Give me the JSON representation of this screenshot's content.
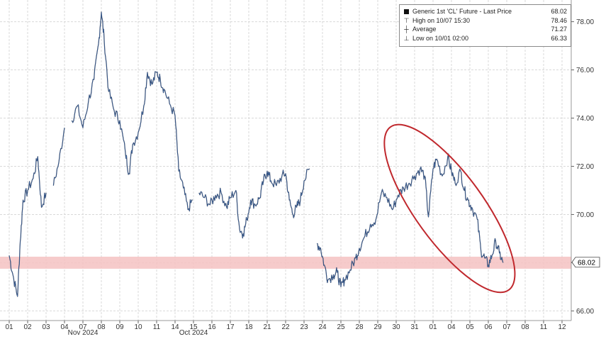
{
  "chart_data": {
    "type": "line",
    "legend": {
      "series_label": "Generic 1st 'CL' Future - Last Price",
      "last_value": "68.02",
      "rows": [
        {
          "label": "High on 10/07 15:30",
          "value": "78.46"
        },
        {
          "label": "Average",
          "value": "71.27"
        },
        {
          "label": "Low on 10/01 02:00",
          "value": "66.33"
        }
      ],
      "placement": "top-right"
    },
    "x_ticks": [
      "01",
      "02",
      "03",
      "04",
      "07",
      "08",
      "09",
      "10",
      "11",
      "14",
      "15",
      "16",
      "17",
      "18",
      "21",
      "22",
      "23",
      "24",
      "25",
      "28",
      "29",
      "30",
      "31",
      "01",
      "04",
      "05",
      "06",
      "07",
      "08",
      "11",
      "12"
    ],
    "x_month_labels": [
      {
        "label": "Oct 2024",
        "after_tick": "15"
      },
      {
        "label": "Nov 2024",
        "after_tick": "07"
      }
    ],
    "y_ticks": [
      "66.00",
      "68.00",
      "70.00",
      "72.00",
      "74.00",
      "76.00",
      "78.00"
    ],
    "ylim": [
      65.6,
      78.9
    ],
    "grid": true,
    "last_price_label": "68.02",
    "highlight_band": {
      "low": 67.75,
      "high": 68.25,
      "color": "#f4c2c2"
    },
    "annotation": {
      "type": "ellipse",
      "color": "#c0282d"
    },
    "series": [
      {
        "points": [
          [
            0,
            68.3
          ],
          [
            0.2,
            67.5
          ],
          [
            0.45,
            66.6
          ],
          [
            0.6,
            68.9
          ],
          [
            0.75,
            70.6
          ],
          [
            1.0,
            71.0
          ],
          [
            1.3,
            71.5
          ],
          [
            1.55,
            72.4
          ],
          [
            1.75,
            70.3
          ],
          [
            2.0,
            70.9
          ],
          [
            2.4,
            71.2
          ],
          [
            2.7,
            72.2
          ],
          [
            3.0,
            73.6
          ],
          [
            3.4,
            73.9
          ],
          [
            3.7,
            74.5
          ],
          [
            4.0,
            73.6
          ],
          [
            4.3,
            74.7
          ],
          [
            4.6,
            75.6
          ],
          [
            4.85,
            77.1
          ],
          [
            5.0,
            78.4
          ],
          [
            5.15,
            77.3
          ],
          [
            5.4,
            75.1
          ],
          [
            5.7,
            74.3
          ],
          [
            6.0,
            73.9
          ],
          [
            6.3,
            72.6
          ],
          [
            6.5,
            71.7
          ],
          [
            6.7,
            72.9
          ],
          [
            7.0,
            73.4
          ],
          [
            7.3,
            74.5
          ],
          [
            7.5,
            75.9
          ],
          [
            7.75,
            75.4
          ],
          [
            8.0,
            75.9
          ],
          [
            8.2,
            75.6
          ],
          [
            8.4,
            75.2
          ],
          [
            8.7,
            74.6
          ],
          [
            9.0,
            74.1
          ],
          [
            9.2,
            71.8
          ],
          [
            9.45,
            71.1
          ],
          [
            9.7,
            70.2
          ],
          [
            9.95,
            70.6
          ],
          [
            10.3,
            70.9
          ],
          [
            10.6,
            70.7
          ],
          [
            10.9,
            70.4
          ],
          [
            11.2,
            70.8
          ],
          [
            11.5,
            70.9
          ],
          [
            11.8,
            70.3
          ],
          [
            12.0,
            70.7
          ],
          [
            12.3,
            71.0
          ],
          [
            12.5,
            69.4
          ],
          [
            12.7,
            69.2
          ],
          [
            12.9,
            69.8
          ],
          [
            13.1,
            70.6
          ],
          [
            13.35,
            70.4
          ],
          [
            13.6,
            70.7
          ],
          [
            13.8,
            71.4
          ],
          [
            14.0,
            71.8
          ],
          [
            14.2,
            71.4
          ],
          [
            14.5,
            71.2
          ],
          [
            14.8,
            71.6
          ],
          [
            15.0,
            71.7
          ],
          [
            15.2,
            70.6
          ],
          [
            15.4,
            70.0
          ],
          [
            15.6,
            70.3
          ],
          [
            15.8,
            70.6
          ],
          [
            16.0,
            71.4
          ],
          [
            16.3,
            71.9
          ],
          [
            16.7,
            68.8
          ],
          [
            16.9,
            68.6
          ],
          [
            17.1,
            67.9
          ],
          [
            17.3,
            67.3
          ],
          [
            17.6,
            67.5
          ],
          [
            17.8,
            67.6
          ],
          [
            18.0,
            67.0
          ],
          [
            18.2,
            67.3
          ],
          [
            18.5,
            67.7
          ],
          [
            18.8,
            68.2
          ],
          [
            19.0,
            68.6
          ],
          [
            19.3,
            69.1
          ],
          [
            19.6,
            69.6
          ],
          [
            19.9,
            69.8
          ],
          [
            20.2,
            70.9
          ],
          [
            20.5,
            70.7
          ],
          [
            20.8,
            70.2
          ],
          [
            21.1,
            70.8
          ],
          [
            21.4,
            71.1
          ],
          [
            21.7,
            71.3
          ],
          [
            22.0,
            71.6
          ],
          [
            22.3,
            71.9
          ],
          [
            22.55,
            71.6
          ],
          [
            22.75,
            69.9
          ],
          [
            23.0,
            71.9
          ],
          [
            23.2,
            72.3
          ],
          [
            23.5,
            71.6
          ],
          [
            23.8,
            72.4
          ],
          [
            24.0,
            71.8
          ],
          [
            24.2,
            71.3
          ],
          [
            24.5,
            71.8
          ],
          [
            24.7,
            71.0
          ],
          [
            24.9,
            70.6
          ],
          [
            25.1,
            70.3
          ],
          [
            25.4,
            69.8
          ],
          [
            25.6,
            68.5
          ],
          [
            25.8,
            68.2
          ],
          [
            26.0,
            67.9
          ],
          [
            26.2,
            68.3
          ],
          [
            26.4,
            68.9
          ],
          [
            26.6,
            68.4
          ],
          [
            26.8,
            68.0
          ]
        ]
      }
    ]
  }
}
